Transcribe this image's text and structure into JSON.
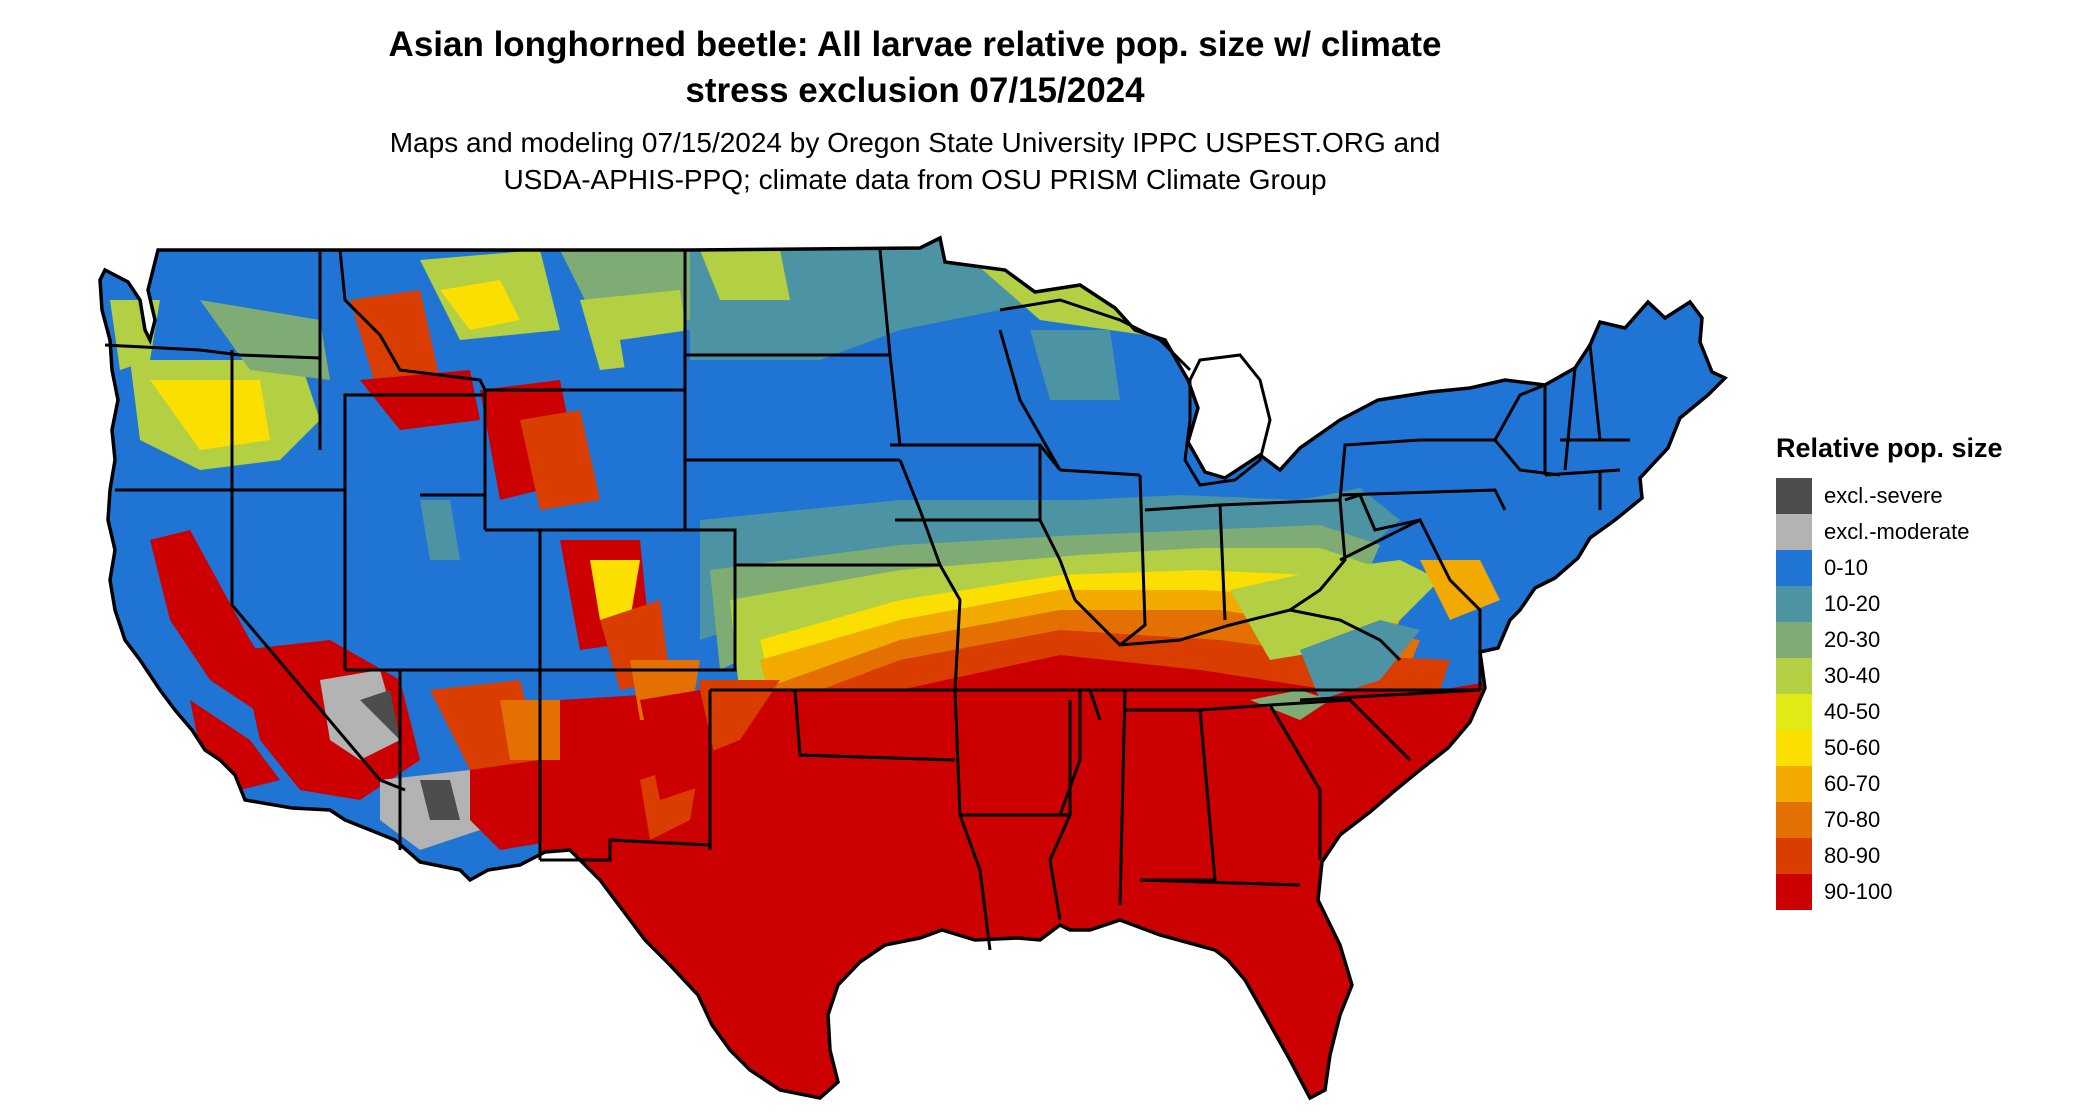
{
  "header": {
    "title_lines": [
      "Asian longhorned beetle: All larvae relative pop. size w/ climate",
      "stress exclusion 07/15/2024"
    ],
    "subtitle_lines": [
      "Maps and modeling 07/15/2024 by Oregon State University IPPC USPEST.ORG and",
      "USDA-APHIS-PPQ; climate data from OSU PRISM Climate Group"
    ]
  },
  "legend": {
    "title": "Relative pop. size",
    "items": [
      {
        "label": "excl.-severe",
        "color": "#4d4d4d"
      },
      {
        "label": "excl.-moderate",
        "color": "#b3b3b3"
      },
      {
        "label": "0-10",
        "color": "#1f74d4"
      },
      {
        "label": "10-20",
        "color": "#4c93a3"
      },
      {
        "label": "20-30",
        "color": "#7fac74"
      },
      {
        "label": "30-40",
        "color": "#b3cf43"
      },
      {
        "label": "40-50",
        "color": "#e1ea14"
      },
      {
        "label": "50-60",
        "color": "#fadf00"
      },
      {
        "label": "60-70",
        "color": "#f2a900"
      },
      {
        "label": "70-80",
        "color": "#e37000"
      },
      {
        "label": "80-90",
        "color": "#d93d00"
      },
      {
        "label": "90-100",
        "color": "#cc0000"
      }
    ]
  },
  "map": {
    "outline_color": "#000000"
  }
}
